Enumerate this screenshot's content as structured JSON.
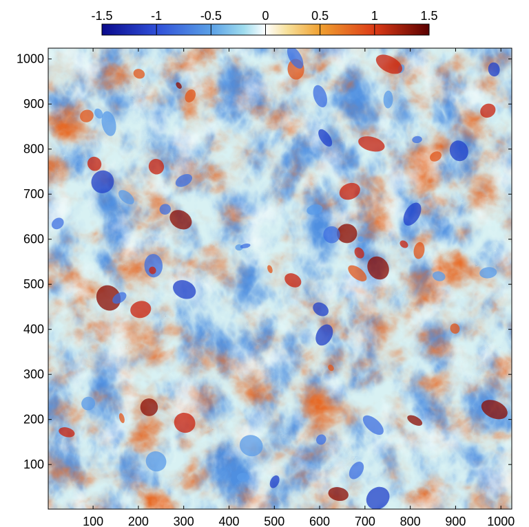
{
  "chart_data": {
    "type": "heatmap",
    "title": "",
    "xlabel": "",
    "ylabel": "",
    "xlim": [
      1,
      1024
    ],
    "ylim": [
      1,
      1024
    ],
    "xticks": [
      100,
      200,
      300,
      400,
      500,
      600,
      700,
      800,
      900,
      1000
    ],
    "yticks": [
      100,
      200,
      300,
      400,
      500,
      600,
      700,
      800,
      900,
      1000
    ],
    "colorbar": {
      "position": "top",
      "range": [
        -1.5,
        1.5
      ],
      "ticks": [
        -1.5,
        -1,
        -0.5,
        0,
        0.5,
        1,
        1.5
      ],
      "tick_labels": [
        "-1.5",
        "-1",
        "-0.5",
        "0",
        "0.5",
        "1",
        "1.5"
      ],
      "colormap": [
        {
          "value": -1.5,
          "color": "#0a0a8c"
        },
        {
          "value": -1.0,
          "color": "#2f4fd8"
        },
        {
          "value": -0.5,
          "color": "#5aa0e6"
        },
        {
          "value": -0.2,
          "color": "#9fdcee"
        },
        {
          "value": 0.0,
          "color": "#ffffff"
        },
        {
          "value": 0.2,
          "color": "#f7e09a"
        },
        {
          "value": 0.5,
          "color": "#f0a030"
        },
        {
          "value": 1.0,
          "color": "#dc3a16"
        },
        {
          "value": 1.5,
          "color": "#5a0000"
        }
      ]
    },
    "grid": false,
    "field_description": "turbulent vorticity field: filaments and vortices with values spanning -1.5 to 1.5"
  }
}
